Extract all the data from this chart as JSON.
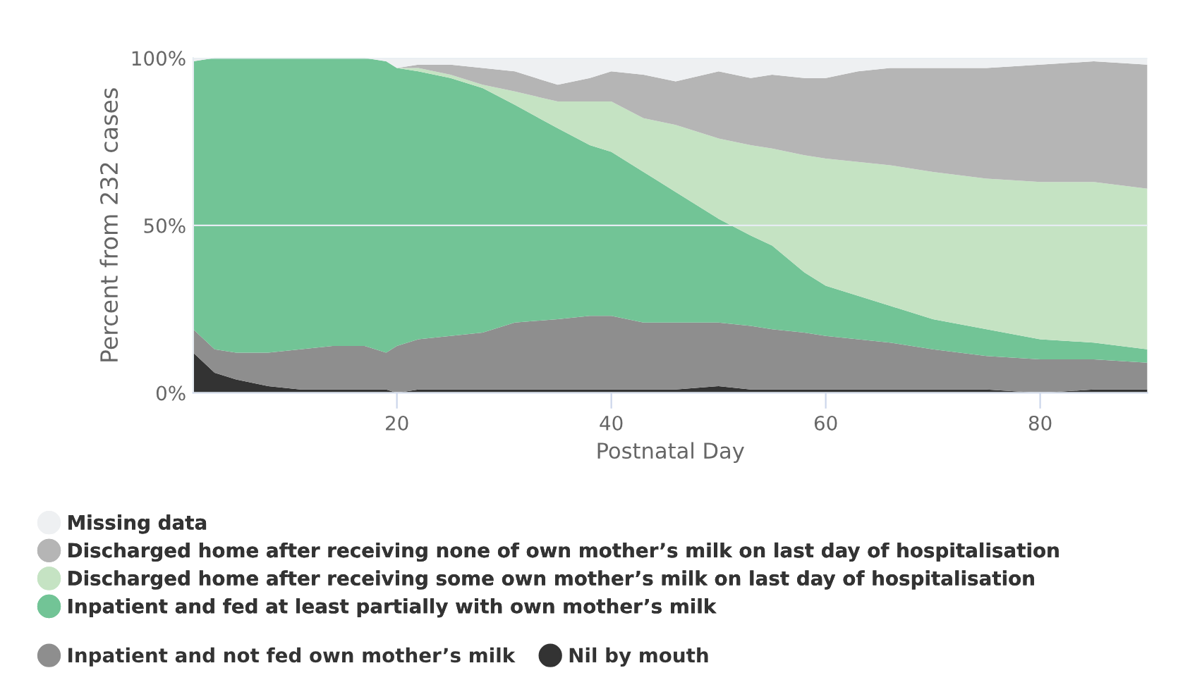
{
  "chart_data": {
    "type": "area",
    "stacked": true,
    "xlabel": "Postnatal Day",
    "ylabel": "Percent from 232 cases",
    "x": [
      1,
      3,
      5,
      8,
      11,
      14,
      17,
      19,
      20,
      22,
      25,
      28,
      31,
      35,
      38,
      40,
      43,
      46,
      50,
      53,
      55,
      58,
      60,
      63,
      66,
      70,
      75,
      80,
      85,
      90
    ],
    "xlim": [
      1,
      90
    ],
    "xticks": [
      20,
      40,
      60,
      80
    ],
    "ylim": [
      0,
      100
    ],
    "yticks": [
      {
        "value": 0,
        "label": "0%"
      },
      {
        "value": 50,
        "label": "50%"
      },
      {
        "value": 100,
        "label": "100%"
      }
    ],
    "grid": "y",
    "legend": "bottom",
    "series": [
      {
        "name": "Nil by mouth",
        "color": "#333333",
        "values": [
          12,
          6,
          4,
          2,
          1,
          1,
          1,
          1,
          0,
          1,
          1,
          1,
          1,
          1,
          1,
          1,
          1,
          1,
          2,
          1,
          1,
          1,
          1,
          1,
          1,
          1,
          1,
          0,
          1,
          1
        ]
      },
      {
        "name": "Inpatient and not fed own mother’s milk",
        "color": "#8e8e8e",
        "values": [
          7,
          7,
          8,
          10,
          12,
          13,
          13,
          11,
          14,
          15,
          16,
          17,
          20,
          21,
          22,
          22,
          20,
          20,
          19,
          19,
          18,
          17,
          16,
          15,
          14,
          12,
          10,
          10,
          9,
          8
        ]
      },
      {
        "name": "Inpatient and fed at least partially with own mother’s milk",
        "color": "#72c496",
        "values": [
          80,
          87,
          88,
          88,
          87,
          86,
          86,
          87,
          83,
          80,
          77,
          73,
          65,
          57,
          51,
          49,
          45,
          39,
          31,
          27,
          25,
          18,
          15,
          13,
          11,
          9,
          8,
          6,
          5,
          4
        ]
      },
      {
        "name": "Discharged home after receiving some own mother’s milk on last day of hospitalisation",
        "color": "#c5e3c3",
        "values": [
          0,
          0,
          0,
          0,
          0,
          0,
          0,
          0,
          0,
          1,
          1,
          1,
          4,
          8,
          13,
          15,
          16,
          20,
          24,
          27,
          29,
          35,
          38,
          40,
          42,
          44,
          45,
          47,
          48,
          48
        ]
      },
      {
        "name": "Discharged home after receiving none of own mother’s milk on last day of hospitalisation",
        "color": "#b5b5b5",
        "values": [
          0,
          0,
          0,
          0,
          0,
          0,
          0,
          0,
          0,
          1,
          3,
          5,
          6,
          5,
          7,
          9,
          13,
          13,
          20,
          20,
          22,
          23,
          24,
          27,
          29,
          31,
          33,
          35,
          36,
          37
        ]
      },
      {
        "name": "Missing data",
        "color": "#eef0f2",
        "values": [
          1,
          0,
          0,
          0,
          0,
          0,
          0,
          1,
          3,
          2,
          2,
          3,
          4,
          8,
          6,
          4,
          5,
          7,
          4,
          6,
          5,
          6,
          6,
          4,
          3,
          3,
          3,
          2,
          1,
          2
        ]
      }
    ]
  }
}
